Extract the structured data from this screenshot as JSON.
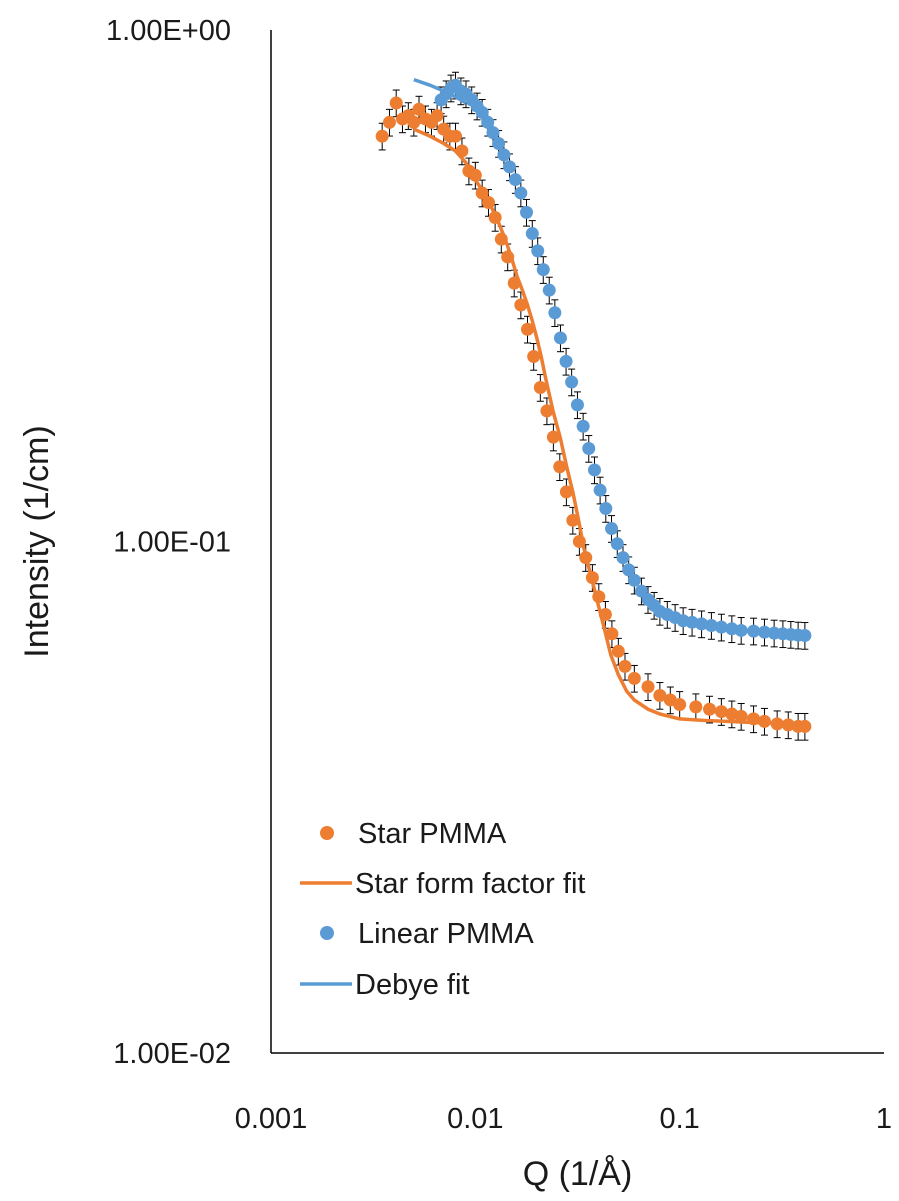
{
  "chart_data": {
    "type": "scatter",
    "title": "",
    "xlabel": "Q (1/Å)",
    "ylabel": "Intensity (1/cm)",
    "xscale": "log",
    "yscale": "log",
    "xlim": [
      0.001,
      1
    ],
    "ylim": [
      0.01,
      1
    ],
    "x_ticks": [
      "0.001",
      "0.01",
      "0.1",
      "1"
    ],
    "y_ticks": [
      "1.00E-02",
      "1.00E-01",
      "1.00E+00"
    ],
    "grid": false,
    "legend_position": "bottom-left",
    "series": [
      {
        "name": "Star PMMA",
        "kind": "markers",
        "color": "#ED7D31",
        "x": [
          0.0035,
          0.0038,
          0.0041,
          0.0044,
          0.0047,
          0.005,
          0.0053,
          0.0057,
          0.0061,
          0.0065,
          0.007,
          0.0075,
          0.008,
          0.0086,
          0.0093,
          0.01,
          0.0108,
          0.0116,
          0.0125,
          0.0134,
          0.0144,
          0.0155,
          0.0167,
          0.018,
          0.0193,
          0.0208,
          0.0224,
          0.0241,
          0.0259,
          0.0279,
          0.03,
          0.0323,
          0.0347,
          0.0374,
          0.0402,
          0.0433,
          0.0466,
          0.0501,
          0.054,
          0.06,
          0.07,
          0.08,
          0.09,
          0.1,
          0.12,
          0.14,
          0.16,
          0.18,
          0.2,
          0.23,
          0.26,
          0.3,
          0.34,
          0.38,
          0.41
        ],
        "y": [
          0.62,
          0.66,
          0.72,
          0.67,
          0.68,
          0.66,
          0.7,
          0.67,
          0.66,
          0.68,
          0.64,
          0.62,
          0.62,
          0.58,
          0.53,
          0.52,
          0.48,
          0.46,
          0.43,
          0.39,
          0.36,
          0.32,
          0.29,
          0.26,
          0.23,
          0.2,
          0.18,
          0.16,
          0.14,
          0.125,
          0.11,
          0.1,
          0.093,
          0.085,
          0.078,
          0.072,
          0.066,
          0.061,
          0.057,
          0.054,
          0.052,
          0.05,
          0.049,
          0.048,
          0.0475,
          0.047,
          0.0465,
          0.046,
          0.0455,
          0.045,
          0.0445,
          0.044,
          0.0438,
          0.0435,
          0.0435
        ]
      },
      {
        "name": "Star form factor fit",
        "kind": "line",
        "color": "#ED7D31",
        "x": [
          0.005,
          0.006,
          0.007,
          0.008,
          0.009,
          0.01,
          0.011,
          0.012,
          0.013,
          0.014,
          0.015,
          0.016,
          0.017,
          0.018,
          0.019,
          0.02,
          0.021,
          0.022,
          0.024,
          0.026,
          0.028,
          0.03,
          0.032,
          0.034,
          0.037,
          0.04,
          0.043,
          0.046,
          0.05,
          0.055,
          0.06,
          0.07,
          0.08,
          0.1,
          0.13,
          0.17,
          0.22,
          0.3,
          0.41
        ],
        "y": [
          0.64,
          0.62,
          0.6,
          0.58,
          0.55,
          0.51,
          0.48,
          0.45,
          0.42,
          0.39,
          0.36,
          0.33,
          0.31,
          0.29,
          0.27,
          0.25,
          0.23,
          0.21,
          0.18,
          0.16,
          0.14,
          0.125,
          0.11,
          0.097,
          0.085,
          0.075,
          0.067,
          0.06,
          0.055,
          0.051,
          0.049,
          0.047,
          0.046,
          0.045,
          0.0447,
          0.0445,
          0.0443,
          0.0441,
          0.044
        ]
      },
      {
        "name": "Linear PMMA",
        "kind": "markers",
        "color": "#5B9BD5",
        "x": [
          0.0068,
          0.0072,
          0.0076,
          0.008,
          0.0085,
          0.009,
          0.0096,
          0.0102,
          0.0108,
          0.0115,
          0.0122,
          0.013,
          0.0138,
          0.0147,
          0.0157,
          0.0167,
          0.0178,
          0.019,
          0.0202,
          0.0215,
          0.023,
          0.0245,
          0.0261,
          0.0278,
          0.0296,
          0.0316,
          0.0337,
          0.0359,
          0.0383,
          0.0408,
          0.0435,
          0.0464,
          0.0495,
          0.0528,
          0.0563,
          0.06,
          0.065,
          0.07,
          0.075,
          0.08,
          0.087,
          0.095,
          0.104,
          0.115,
          0.128,
          0.143,
          0.16,
          0.18,
          0.2,
          0.23,
          0.26,
          0.29,
          0.32,
          0.35,
          0.38,
          0.41
        ],
        "y": [
          0.73,
          0.75,
          0.77,
          0.78,
          0.76,
          0.75,
          0.73,
          0.71,
          0.69,
          0.66,
          0.63,
          0.6,
          0.57,
          0.54,
          0.51,
          0.48,
          0.44,
          0.4,
          0.37,
          0.34,
          0.31,
          0.28,
          0.25,
          0.225,
          0.205,
          0.185,
          0.168,
          0.152,
          0.138,
          0.126,
          0.116,
          0.106,
          0.099,
          0.093,
          0.088,
          0.084,
          0.08,
          0.077,
          0.075,
          0.073,
          0.072,
          0.071,
          0.07,
          0.0695,
          0.069,
          0.0685,
          0.068,
          0.0675,
          0.067,
          0.0668,
          0.0665,
          0.0662,
          0.066,
          0.0658,
          0.0656,
          0.0655
        ]
      },
      {
        "name": "Debye fit",
        "kind": "line",
        "color": "#5B9BD5",
        "x": [
          0.005,
          0.006,
          0.007,
          0.008,
          0.009
        ],
        "y": [
          0.8,
          0.78,
          0.76,
          0.74,
          0.72
        ]
      }
    ]
  }
}
